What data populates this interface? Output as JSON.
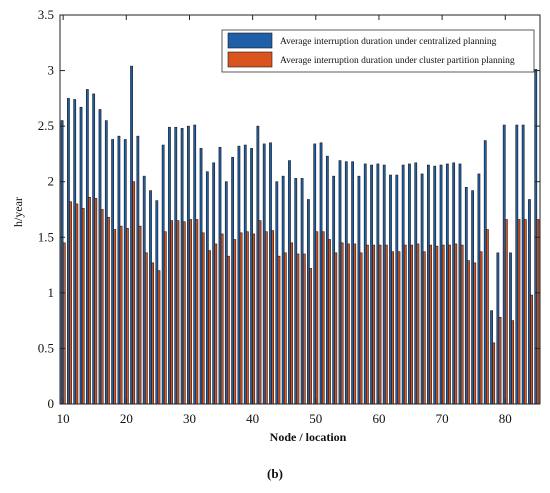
{
  "chart_data": {
    "type": "bar",
    "xlabel": "Node / location",
    "ylabel": "h/year",
    "ylim": [
      0,
      3.5
    ],
    "xlim": [
      9.5,
      85.5
    ],
    "yticks": [
      "0",
      "0.5",
      "1",
      "1.5",
      "2",
      "2.5",
      "3",
      "3.5"
    ],
    "xticks": [
      "10",
      "20",
      "30",
      "40",
      "50",
      "60",
      "70",
      "80"
    ],
    "legend_position": "top-right",
    "grid": false,
    "x": [
      10,
      11,
      12,
      13,
      14,
      15,
      16,
      17,
      18,
      19,
      20,
      21,
      22,
      23,
      24,
      25,
      26,
      27,
      28,
      29,
      30,
      31,
      32,
      33,
      34,
      35,
      36,
      37,
      38,
      39,
      40,
      41,
      42,
      43,
      44,
      45,
      46,
      47,
      48,
      49,
      50,
      51,
      52,
      53,
      54,
      55,
      56,
      57,
      58,
      59,
      60,
      61,
      62,
      63,
      64,
      65,
      66,
      67,
      68,
      69,
      70,
      71,
      72,
      73,
      74,
      75,
      76,
      77,
      78,
      79,
      80,
      81,
      82,
      83,
      84,
      85
    ],
    "series": [
      {
        "name": "Average interruption duration under centralized planning",
        "color": "#1f5fa8",
        "values": [
          2.55,
          2.75,
          2.74,
          2.67,
          2.83,
          2.79,
          2.65,
          2.55,
          2.38,
          2.41,
          2.38,
          3.04,
          2.41,
          2.05,
          1.92,
          1.83,
          2.33,
          2.49,
          2.49,
          2.48,
          2.5,
          2.51,
          2.3,
          2.09,
          2.17,
          2.31,
          2.0,
          2.22,
          2.32,
          2.33,
          2.3,
          2.5,
          2.34,
          2.35,
          2.0,
          2.05,
          2.19,
          2.03,
          2.03,
          1.84,
          2.34,
          2.35,
          2.23,
          2.05,
          2.19,
          2.18,
          2.18,
          2.05,
          2.16,
          2.15,
          2.16,
          2.15,
          2.06,
          2.06,
          2.15,
          2.16,
          2.17,
          2.07,
          2.15,
          2.14,
          2.15,
          2.16,
          2.17,
          2.16,
          1.95,
          1.92,
          2.07,
          2.37,
          0.84,
          1.36,
          2.51,
          1.36,
          2.51,
          2.51,
          1.84,
          3.01
        ]
      },
      {
        "name": "Average interruption duration under cluster partition planning",
        "color": "#d9541e",
        "values": [
          1.45,
          1.82,
          1.8,
          1.76,
          1.86,
          1.85,
          1.75,
          1.68,
          1.57,
          1.6,
          1.58,
          2.0,
          1.6,
          1.36,
          1.27,
          1.2,
          1.55,
          1.65,
          1.65,
          1.64,
          1.66,
          1.66,
          1.54,
          1.38,
          1.44,
          1.53,
          1.33,
          1.48,
          1.54,
          1.55,
          1.53,
          1.65,
          1.55,
          1.56,
          1.33,
          1.36,
          1.45,
          1.35,
          1.35,
          1.22,
          1.55,
          1.55,
          1.48,
          1.36,
          1.45,
          1.44,
          1.44,
          1.36,
          1.43,
          1.43,
          1.43,
          1.43,
          1.37,
          1.37,
          1.43,
          1.43,
          1.44,
          1.37,
          1.43,
          1.42,
          1.43,
          1.43,
          1.44,
          1.43,
          1.29,
          1.27,
          1.37,
          1.57,
          0.55,
          0.78,
          1.66,
          0.75,
          1.66,
          1.66,
          0.98,
          1.66
        ]
      }
    ]
  },
  "caption": "(b)"
}
